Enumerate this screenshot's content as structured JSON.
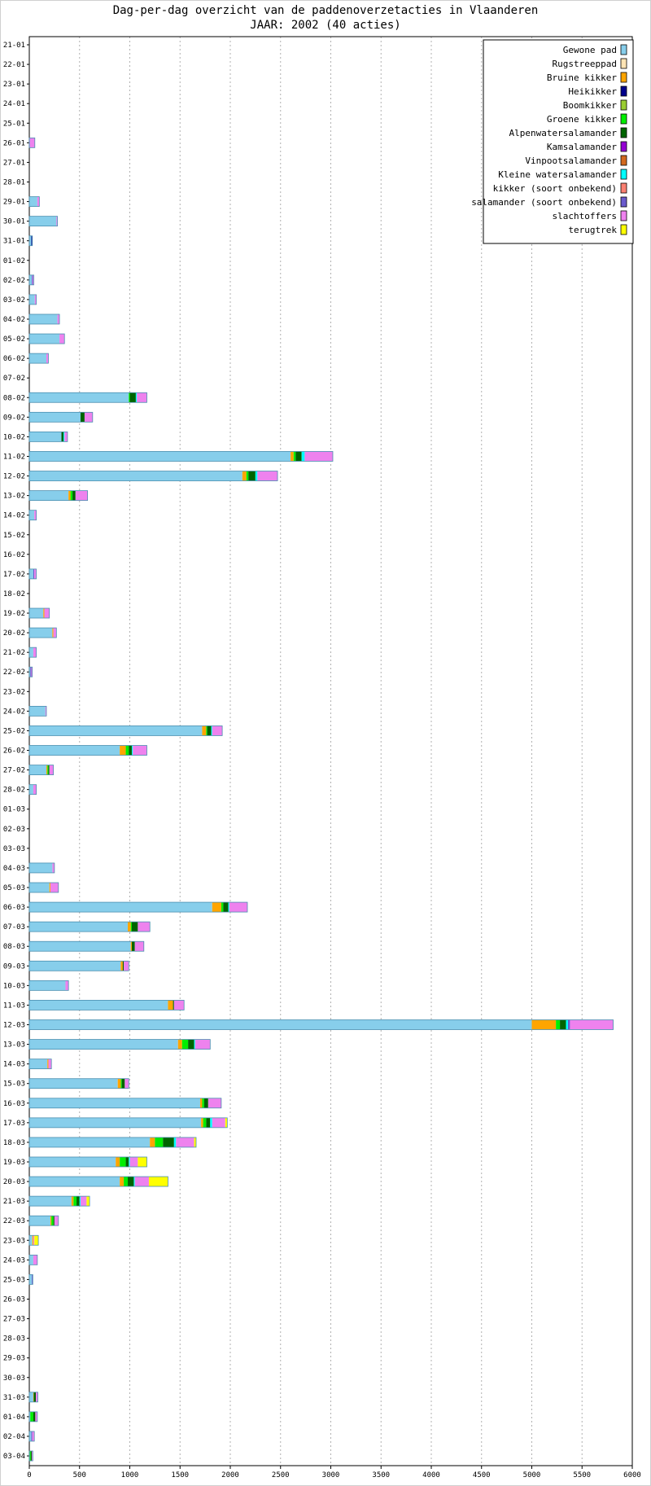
{
  "chart_data": {
    "type": "bar",
    "orientation": "horizontal",
    "stacked": true,
    "title": "Dag-per-dag overzicht van de paddenoverzetacties in Vlaanderen",
    "subtitle": "JAAR: 2002 (40 acties)",
    "xlim": [
      0,
      6000
    ],
    "x_ticks": [
      0,
      500,
      1000,
      1500,
      2000,
      2500,
      3000,
      3500,
      4000,
      4500,
      5000,
      5500,
      6000
    ],
    "grid": true,
    "legend_position": "top-right",
    "categories": [
      "21-01",
      "22-01",
      "23-01",
      "24-01",
      "25-01",
      "26-01",
      "27-01",
      "28-01",
      "29-01",
      "30-01",
      "31-01",
      "01-02",
      "02-02",
      "03-02",
      "04-02",
      "05-02",
      "06-02",
      "07-02",
      "08-02",
      "09-02",
      "10-02",
      "11-02",
      "12-02",
      "13-02",
      "14-02",
      "15-02",
      "16-02",
      "17-02",
      "18-02",
      "19-02",
      "20-02",
      "21-02",
      "22-02",
      "23-02",
      "24-02",
      "25-02",
      "26-02",
      "27-02",
      "28-02",
      "01-03",
      "02-03",
      "03-03",
      "04-03",
      "05-03",
      "06-03",
      "07-03",
      "08-03",
      "09-03",
      "10-03",
      "11-03",
      "12-03",
      "13-03",
      "14-03",
      "15-03",
      "16-03",
      "17-03",
      "18-03",
      "19-03",
      "20-03",
      "21-03",
      "22-03",
      "23-03",
      "24-03",
      "25-03",
      "26-03",
      "27-03",
      "28-03",
      "29-03",
      "30-03",
      "31-03",
      "01-04",
      "02-04",
      "03-04"
    ],
    "series": [
      {
        "name": "Gewone pad",
        "color": "#87ceeb",
        "values": [
          0,
          0,
          0,
          0,
          0,
          5,
          0,
          0,
          80,
          270,
          20,
          0,
          25,
          55,
          280,
          300,
          170,
          0,
          990,
          510,
          320,
          2600,
          2120,
          390,
          50,
          0,
          0,
          40,
          0,
          140,
          230,
          40,
          10,
          0,
          160,
          1720,
          900,
          170,
          40,
          0,
          0,
          0,
          230,
          200,
          1820,
          980,
          1010,
          910,
          360,
          1380,
          5000,
          1480,
          180,
          880,
          1700,
          1710,
          1200,
          860,
          900,
          420,
          210,
          30,
          40,
          25,
          0,
          0,
          0,
          0,
          0,
          40,
          10,
          20,
          5
        ]
      },
      {
        "name": "Rugstreeppad",
        "color": "#ffe4b5",
        "values": [
          0,
          0,
          0,
          0,
          0,
          0,
          0,
          0,
          0,
          0,
          0,
          0,
          0,
          0,
          0,
          0,
          0,
          0,
          0,
          0,
          0,
          0,
          0,
          0,
          0,
          0,
          0,
          0,
          0,
          0,
          0,
          0,
          0,
          0,
          0,
          0,
          0,
          0,
          0,
          0,
          0,
          0,
          0,
          0,
          0,
          0,
          0,
          0,
          0,
          0,
          0,
          0,
          0,
          0,
          0,
          0,
          0,
          0,
          0,
          0,
          0,
          0,
          0,
          0,
          0,
          0,
          0,
          0,
          0,
          0,
          0,
          0,
          0
        ]
      },
      {
        "name": "Bruine kikker",
        "color": "#ffa500",
        "values": [
          0,
          0,
          0,
          0,
          0,
          0,
          0,
          0,
          0,
          0,
          0,
          0,
          0,
          0,
          0,
          0,
          0,
          0,
          0,
          0,
          0,
          30,
          40,
          20,
          0,
          0,
          0,
          0,
          0,
          10,
          10,
          0,
          0,
          0,
          0,
          40,
          60,
          10,
          0,
          0,
          0,
          0,
          0,
          10,
          90,
          30,
          10,
          20,
          0,
          50,
          240,
          40,
          10,
          30,
          20,
          20,
          50,
          40,
          40,
          20,
          10,
          10,
          0,
          0,
          0,
          0,
          0,
          0,
          0,
          5,
          0,
          0,
          0
        ]
      },
      {
        "name": "Heikikker",
        "color": "#00008b",
        "values": [
          0,
          0,
          0,
          0,
          0,
          0,
          0,
          0,
          0,
          0,
          10,
          0,
          0,
          0,
          0,
          0,
          0,
          0,
          0,
          0,
          0,
          0,
          0,
          0,
          0,
          0,
          0,
          0,
          0,
          0,
          0,
          0,
          0,
          0,
          0,
          0,
          0,
          0,
          0,
          0,
          0,
          0,
          0,
          0,
          0,
          0,
          0,
          0,
          0,
          0,
          0,
          0,
          0,
          0,
          0,
          0,
          0,
          0,
          0,
          0,
          0,
          0,
          0,
          0,
          0,
          0,
          0,
          0,
          0,
          0,
          0,
          0,
          0
        ]
      },
      {
        "name": "Boomkikker",
        "color": "#9acd32",
        "values": [
          0,
          0,
          0,
          0,
          0,
          0,
          0,
          0,
          0,
          0,
          0,
          0,
          0,
          0,
          0,
          0,
          0,
          0,
          0,
          0,
          0,
          0,
          0,
          0,
          0,
          0,
          0,
          0,
          0,
          0,
          0,
          0,
          0,
          0,
          0,
          0,
          0,
          0,
          0,
          0,
          0,
          0,
          0,
          0,
          0,
          0,
          0,
          0,
          0,
          0,
          0,
          0,
          0,
          0,
          0,
          0,
          0,
          0,
          0,
          0,
          0,
          0,
          0,
          0,
          0,
          0,
          0,
          0,
          0,
          0,
          0,
          0,
          0
        ]
      },
      {
        "name": "Groene kikker",
        "color": "#00ee00",
        "values": [
          0,
          0,
          0,
          0,
          0,
          0,
          0,
          0,
          0,
          0,
          0,
          0,
          0,
          0,
          0,
          0,
          0,
          0,
          10,
          0,
          0,
          20,
          20,
          20,
          0,
          0,
          0,
          0,
          0,
          0,
          0,
          0,
          0,
          0,
          0,
          10,
          30,
          10,
          0,
          0,
          0,
          0,
          0,
          0,
          20,
          10,
          0,
          0,
          0,
          0,
          40,
          60,
          0,
          10,
          20,
          30,
          80,
          60,
          40,
          30,
          20,
          0,
          0,
          0,
          0,
          0,
          0,
          0,
          0,
          0,
          30,
          0,
          10
        ]
      },
      {
        "name": "Alpenwatersalamander",
        "color": "#006400",
        "values": [
          0,
          0,
          0,
          0,
          0,
          0,
          0,
          0,
          0,
          0,
          0,
          0,
          0,
          0,
          0,
          0,
          0,
          0,
          60,
          40,
          20,
          60,
          70,
          30,
          0,
          0,
          0,
          0,
          0,
          0,
          0,
          0,
          0,
          0,
          0,
          40,
          30,
          10,
          0,
          0,
          0,
          0,
          0,
          0,
          50,
          60,
          30,
          10,
          0,
          10,
          60,
          60,
          0,
          30,
          40,
          40,
          110,
          30,
          60,
          30,
          10,
          0,
          0,
          0,
          0,
          0,
          0,
          0,
          0,
          20,
          20,
          0,
          10
        ]
      },
      {
        "name": "Kamsalamander",
        "color": "#9400d3",
        "values": [
          0,
          0,
          0,
          0,
          0,
          0,
          0,
          0,
          0,
          0,
          0,
          0,
          0,
          0,
          0,
          0,
          0,
          0,
          0,
          0,
          0,
          0,
          0,
          0,
          0,
          0,
          0,
          0,
          0,
          0,
          0,
          0,
          0,
          0,
          0,
          0,
          0,
          0,
          0,
          0,
          0,
          0,
          0,
          0,
          0,
          0,
          0,
          0,
          0,
          0,
          0,
          0,
          0,
          0,
          0,
          0,
          0,
          0,
          0,
          0,
          0,
          0,
          0,
          0,
          0,
          0,
          0,
          0,
          0,
          0,
          0,
          0,
          0
        ]
      },
      {
        "name": "Vinpootsalamander",
        "color": "#d2691e",
        "values": [
          0,
          0,
          0,
          0,
          0,
          0,
          0,
          0,
          0,
          0,
          0,
          0,
          0,
          0,
          0,
          0,
          0,
          0,
          0,
          0,
          0,
          0,
          0,
          0,
          0,
          0,
          0,
          0,
          0,
          0,
          0,
          0,
          0,
          0,
          0,
          0,
          0,
          0,
          0,
          0,
          0,
          0,
          0,
          0,
          0,
          0,
          0,
          0,
          0,
          0,
          0,
          0,
          0,
          0,
          0,
          0,
          0,
          0,
          0,
          0,
          0,
          0,
          0,
          0,
          0,
          0,
          0,
          0,
          0,
          0,
          0,
          0,
          0
        ]
      },
      {
        "name": "Kleine watersalamander",
        "color": "#00ffff",
        "values": [
          0,
          0,
          0,
          0,
          0,
          0,
          0,
          0,
          0,
          0,
          0,
          0,
          0,
          0,
          0,
          0,
          0,
          0,
          10,
          0,
          10,
          30,
          20,
          0,
          0,
          0,
          0,
          0,
          0,
          0,
          0,
          0,
          0,
          0,
          0,
          10,
          10,
          0,
          0,
          0,
          0,
          0,
          0,
          0,
          10,
          0,
          0,
          0,
          0,
          0,
          20,
          10,
          0,
          0,
          0,
          20,
          20,
          10,
          10,
          10,
          0,
          0,
          0,
          0,
          0,
          0,
          0,
          0,
          0,
          0,
          0,
          0,
          0
        ]
      },
      {
        "name": "kikker (soort onbekend)",
        "color": "#fa8072",
        "values": [
          0,
          0,
          0,
          0,
          0,
          0,
          0,
          0,
          0,
          0,
          0,
          0,
          0,
          0,
          0,
          0,
          0,
          0,
          0,
          0,
          0,
          0,
          0,
          0,
          0,
          0,
          0,
          0,
          0,
          0,
          0,
          0,
          0,
          0,
          0,
          0,
          0,
          0,
          0,
          0,
          0,
          0,
          0,
          0,
          0,
          0,
          0,
          0,
          0,
          0,
          0,
          0,
          0,
          0,
          0,
          0,
          0,
          0,
          0,
          0,
          0,
          0,
          0,
          0,
          0,
          0,
          0,
          0,
          0,
          0,
          0,
          0,
          0
        ]
      },
      {
        "name": "salamander (soort onbekend)",
        "color": "#6a5acd",
        "values": [
          0,
          0,
          0,
          0,
          0,
          0,
          0,
          0,
          0,
          0,
          0,
          0,
          10,
          0,
          0,
          0,
          0,
          0,
          0,
          0,
          0,
          0,
          0,
          0,
          0,
          0,
          0,
          10,
          0,
          0,
          0,
          0,
          10,
          0,
          0,
          0,
          0,
          0,
          0,
          0,
          0,
          0,
          0,
          0,
          0,
          0,
          0,
          0,
          0,
          0,
          20,
          0,
          0,
          0,
          0,
          0,
          0,
          0,
          0,
          0,
          0,
          0,
          0,
          10,
          0,
          0,
          0,
          0,
          0,
          0,
          0,
          10,
          0
        ]
      },
      {
        "name": "slachtoffers",
        "color": "#ee82ee",
        "values": [
          0,
          0,
          0,
          0,
          0,
          50,
          0,
          0,
          20,
          10,
          0,
          0,
          10,
          15,
          20,
          50,
          20,
          0,
          100,
          80,
          30,
          280,
          200,
          120,
          20,
          0,
          0,
          20,
          0,
          50,
          30,
          30,
          10,
          0,
          10,
          100,
          140,
          40,
          30,
          0,
          0,
          0,
          20,
          80,
          180,
          120,
          90,
          50,
          30,
          100,
          430,
          150,
          30,
          40,
          130,
          130,
          180,
          80,
          140,
          60,
          40,
          10,
          40,
          0,
          0,
          0,
          0,
          0,
          0,
          20,
          20,
          20,
          10
        ]
      },
      {
        "name": "terugtrek",
        "color": "#ffff00",
        "values": [
          0,
          0,
          0,
          0,
          0,
          0,
          0,
          0,
          0,
          0,
          0,
          0,
          0,
          0,
          0,
          0,
          0,
          0,
          0,
          0,
          0,
          0,
          0,
          0,
          0,
          0,
          0,
          0,
          0,
          0,
          0,
          0,
          0,
          0,
          0,
          0,
          0,
          0,
          0,
          0,
          0,
          0,
          0,
          0,
          0,
          0,
          0,
          0,
          0,
          0,
          0,
          0,
          0,
          0,
          0,
          20,
          20,
          90,
          190,
          30,
          0,
          40,
          0,
          0,
          0,
          0,
          0,
          0,
          0,
          0,
          0,
          0,
          0
        ]
      }
    ]
  }
}
